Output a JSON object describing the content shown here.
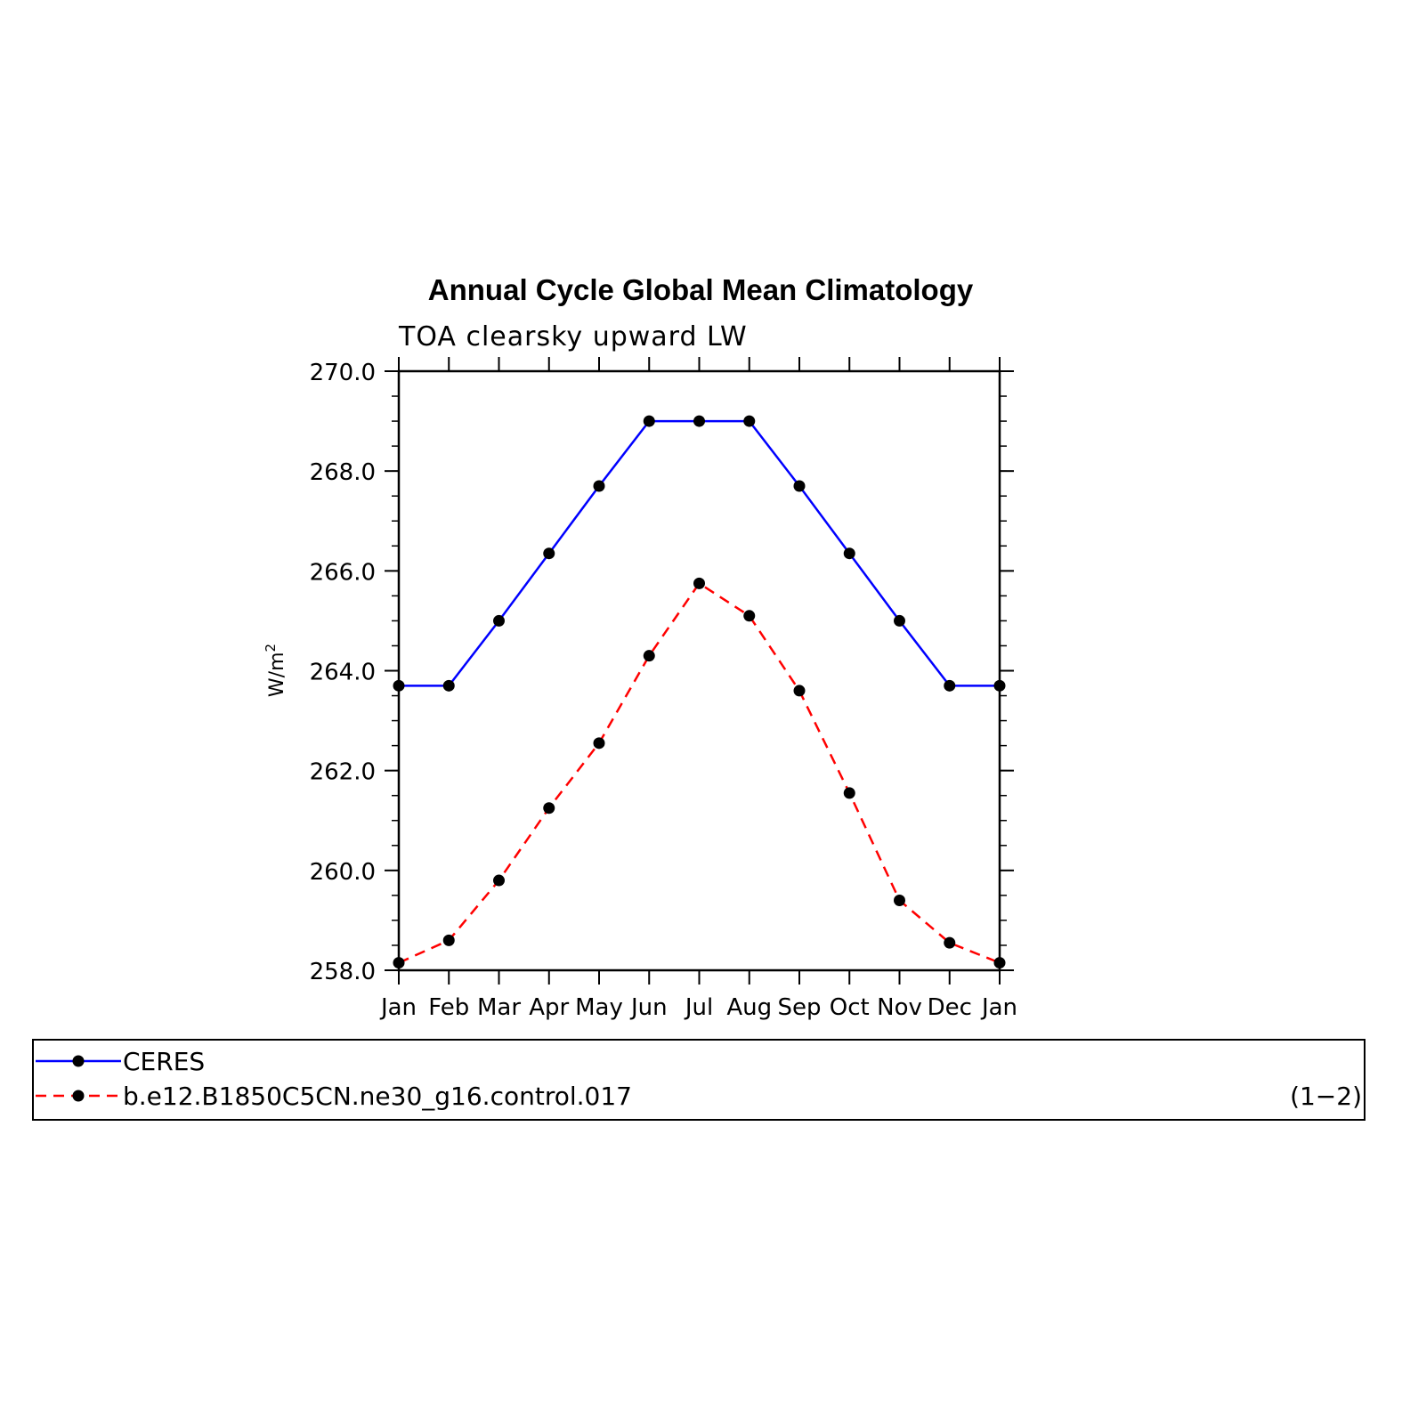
{
  "chart_data": {
    "type": "line",
    "title": "Annual Cycle Global Mean Climatology",
    "subtitle": "TOA clearsky upward LW",
    "ylabel": "W/m",
    "ylabel_superscript": "2",
    "categories": [
      "Jan",
      "Feb",
      "Mar",
      "Apr",
      "May",
      "Jun",
      "Jul",
      "Aug",
      "Sep",
      "Oct",
      "Nov",
      "Dec",
      "Jan"
    ],
    "ylim": [
      258.0,
      270.0
    ],
    "y_ticks": [
      "258.0",
      "260.0",
      "262.0",
      "264.0",
      "266.0",
      "268.0",
      "270.0"
    ],
    "y_tick_values": [
      258.0,
      260.0,
      262.0,
      264.0,
      266.0,
      268.0,
      270.0
    ],
    "y_minor_step": 0.5,
    "grid": false,
    "legend_placement": "bottom",
    "series": [
      {
        "name": "CERES",
        "color": "#0000ff",
        "dash": "solid",
        "values": [
          263.7,
          263.7,
          265.0,
          266.35,
          267.7,
          269.0,
          269.0,
          269.0,
          267.7,
          266.35,
          265.0,
          263.7,
          263.7
        ]
      },
      {
        "name": "b.e12.B1850C5CN.ne30_g16.control.017",
        "color": "#ff0000",
        "dash": "dashed",
        "values": [
          258.15,
          258.6,
          259.8,
          261.25,
          262.55,
          264.3,
          265.75,
          265.1,
          263.6,
          261.55,
          259.4,
          258.55,
          258.15
        ]
      }
    ],
    "legend_note": "(1−2)"
  }
}
